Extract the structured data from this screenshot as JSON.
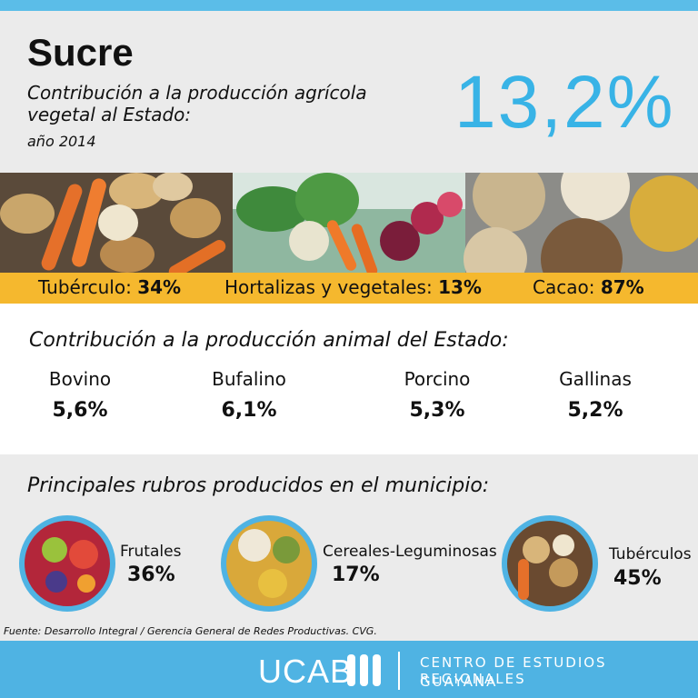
{
  "header": {
    "title": "Sucre",
    "subtitle": "Contribución a la producción agrícola vegetal al Estado:",
    "year": "año 2014",
    "value": "13,2%"
  },
  "vegetal": [
    {
      "label": "Tubérculo:",
      "value": "34%"
    },
    {
      "label": "Hortalizas y vegetales:",
      "value": "13%"
    },
    {
      "label": "Cacao:",
      "value": "87%"
    }
  ],
  "animal": {
    "title": "Contribución a la producción animal del Estado:",
    "items": [
      {
        "label": "Bovino",
        "value": "5,6%"
      },
      {
        "label": "Bufalino",
        "value": "6,1%"
      },
      {
        "label": "Porcino",
        "value": "5,3%"
      },
      {
        "label": "Gallinas",
        "value": "5,2%"
      }
    ]
  },
  "rubros": {
    "title": "Principales rubros producidos en el municipio:",
    "items": [
      {
        "label": "Frutales",
        "value": "36%"
      },
      {
        "label": "Cereales-Leguminosas",
        "value": "17%"
      },
      {
        "label": "Tubérculos",
        "value": "45%"
      }
    ]
  },
  "source": "Fuente: Desarrollo Integral / Gerencia General de Redes Productivas. CVG.",
  "footer": {
    "logo": "UCAB",
    "line1": "CENTRO DE ESTUDIOS REGIONALES",
    "line2": "GUAYANA"
  }
}
